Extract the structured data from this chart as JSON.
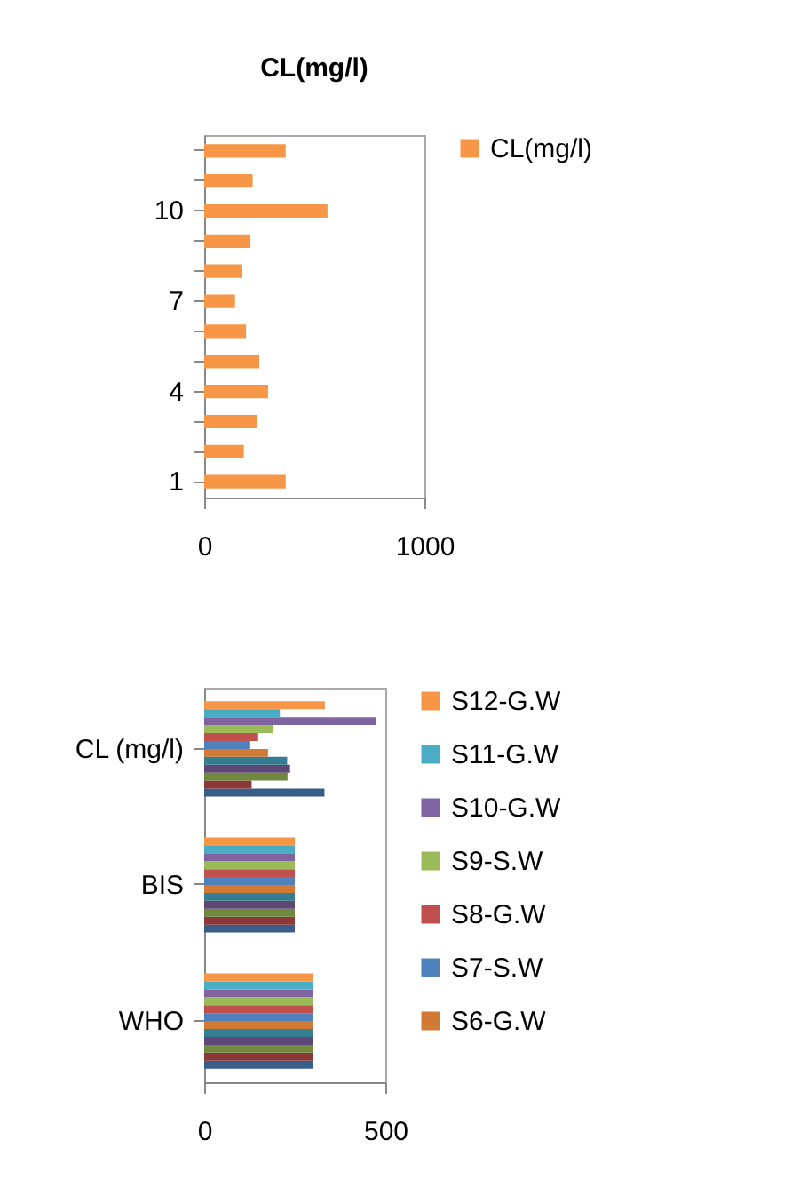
{
  "chart_data": [
    {
      "type": "bar",
      "orientation": "horizontal",
      "title": "CL(mg/l)",
      "categories": [
        null,
        null,
        "10",
        null,
        null,
        "7",
        null,
        null,
        "4",
        null,
        null,
        "1"
      ],
      "series": [
        {
          "name": "CL(mg/l)",
          "color": "#f79646",
          "values": [
            370,
            220,
            560,
            210,
            170,
            140,
            190,
            250,
            290,
            240,
            180,
            370
          ]
        }
      ],
      "xlim": [
        0,
        1000
      ],
      "xticks": [
        0,
        1000
      ],
      "legend": "right",
      "grid": false
    },
    {
      "type": "bar",
      "orientation": "horizontal",
      "categories": [
        "CL (mg/l)",
        "BIS",
        "WHO"
      ],
      "series": [
        {
          "color": "#385d8a",
          "values": [
            332,
            250,
            300
          ]
        },
        {
          "color": "#8c3836",
          "values": [
            131,
            250,
            300
          ]
        },
        {
          "color": "#71893f",
          "values": [
            230,
            250,
            300
          ]
        },
        {
          "color": "#5c4776",
          "values": [
            237,
            250,
            300
          ]
        },
        {
          "color": "#357d91",
          "values": [
            229,
            250,
            300
          ]
        },
        {
          "name": "S6-G.W",
          "color": "#d07a36",
          "values": [
            176,
            250,
            300
          ]
        },
        {
          "name": "S7-S.W",
          "color": "#4f81bd",
          "values": [
            127,
            250,
            300
          ]
        },
        {
          "name": "S8-G.W",
          "color": "#c0504d",
          "values": [
            149,
            250,
            300
          ]
        },
        {
          "name": "S9-S.W",
          "color": "#9bbb59",
          "values": [
            190,
            250,
            300
          ]
        },
        {
          "name": "S10-G.W",
          "color": "#8064a2",
          "values": [
            475,
            250,
            300
          ]
        },
        {
          "name": "S11-G.W",
          "color": "#4bacc6",
          "values": [
            209,
            250,
            300
          ]
        },
        {
          "name": "S12-G.W",
          "color": "#f79646",
          "values": [
            333,
            250,
            300
          ]
        }
      ],
      "xlim": [
        0,
        500
      ],
      "xticks": [
        0,
        500
      ],
      "legend": "right",
      "grid": false
    }
  ]
}
